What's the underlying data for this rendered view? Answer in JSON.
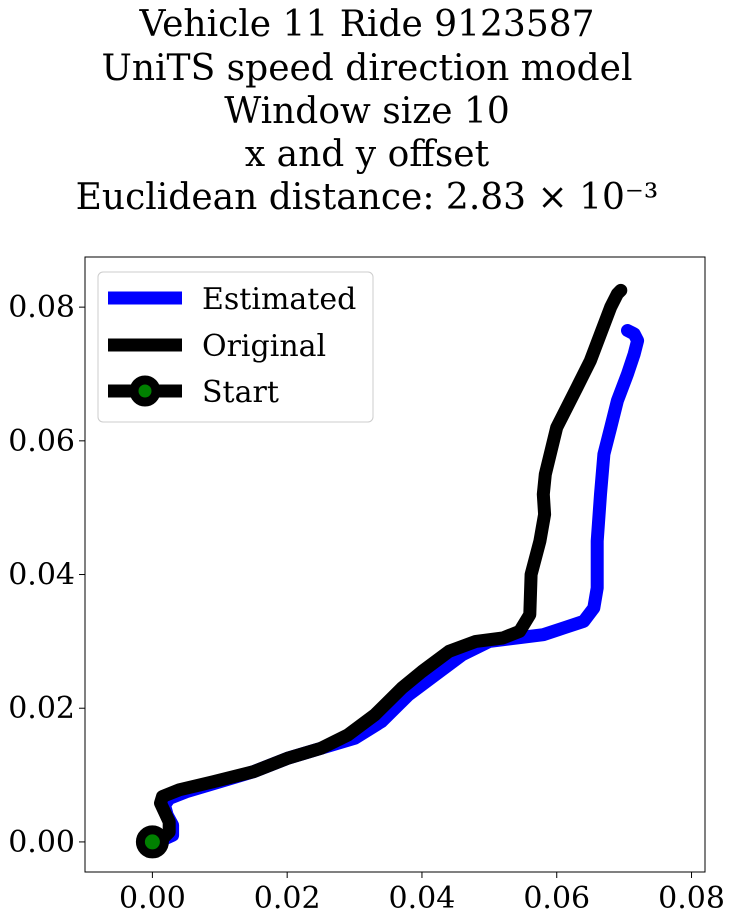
{
  "chart_data": {
    "type": "line",
    "title_lines": [
      "Vehicle 11 Ride 9123587",
      "UniTS speed direction model",
      "Window size 10",
      "x and y offset",
      "Euclidean distance: 2.83 × 10⁻³"
    ],
    "xlabel": "",
    "ylabel": "",
    "xlim": [
      -0.01,
      0.082
    ],
    "ylim": [
      -0.0045,
      0.0875
    ],
    "xticks": [
      0.0,
      0.02,
      0.04,
      0.06,
      0.08
    ],
    "yticks": [
      0.0,
      0.02,
      0.04,
      0.06,
      0.08
    ],
    "xtick_labels": [
      "0.00",
      "0.02",
      "0.04",
      "0.06",
      "0.08"
    ],
    "ytick_labels": [
      "0.00",
      "0.02",
      "0.04",
      "0.06",
      "0.08"
    ],
    "grid": false,
    "legend": {
      "position": "upper-left",
      "entries": [
        "Estimated",
        "Original",
        "Start"
      ]
    },
    "series": [
      {
        "name": "Estimated",
        "color": "#0000ff",
        "x": [
          0.0,
          0.0015,
          0.003,
          0.003,
          0.0022,
          0.0018,
          0.0025,
          0.005,
          0.01,
          0.015,
          0.02,
          0.025,
          0.03,
          0.034,
          0.038,
          0.042,
          0.046,
          0.05,
          0.054,
          0.058,
          0.061,
          0.064,
          0.0655,
          0.066,
          0.066,
          0.0665,
          0.067,
          0.068,
          0.069,
          0.0705,
          0.0715,
          0.072,
          0.0715,
          0.0705
        ],
        "y": [
          0.0,
          0.0003,
          0.001,
          0.0025,
          0.004,
          0.0055,
          0.0065,
          0.0075,
          0.009,
          0.0105,
          0.0125,
          0.014,
          0.0155,
          0.018,
          0.022,
          0.025,
          0.028,
          0.03,
          0.0305,
          0.031,
          0.032,
          0.033,
          0.035,
          0.038,
          0.045,
          0.052,
          0.058,
          0.062,
          0.066,
          0.07,
          0.073,
          0.075,
          0.076,
          0.0765
        ]
      },
      {
        "name": "Original",
        "color": "#000000",
        "x": [
          0.0,
          0.0015,
          0.0025,
          0.0025,
          0.0018,
          0.0012,
          0.0015,
          0.004,
          0.009,
          0.015,
          0.02,
          0.025,
          0.029,
          0.033,
          0.037,
          0.04,
          0.044,
          0.048,
          0.052,
          0.0545,
          0.056,
          0.0562,
          0.0575,
          0.0582,
          0.058,
          0.0583,
          0.06,
          0.063,
          0.065,
          0.0665,
          0.068,
          0.069,
          0.0695
        ],
        "y": [
          0.0,
          0.0005,
          0.0015,
          0.003,
          0.0045,
          0.0058,
          0.0068,
          0.0078,
          0.009,
          0.0105,
          0.0125,
          0.014,
          0.016,
          0.019,
          0.023,
          0.0255,
          0.0285,
          0.03,
          0.0305,
          0.0315,
          0.034,
          0.04,
          0.045,
          0.049,
          0.052,
          0.055,
          0.062,
          0.068,
          0.072,
          0.076,
          0.08,
          0.082,
          0.0825
        ]
      }
    ],
    "start_point": {
      "name": "Start",
      "x": 0.0,
      "y": 0.0,
      "edge_color": "#000000",
      "face_color": "#008000"
    }
  }
}
